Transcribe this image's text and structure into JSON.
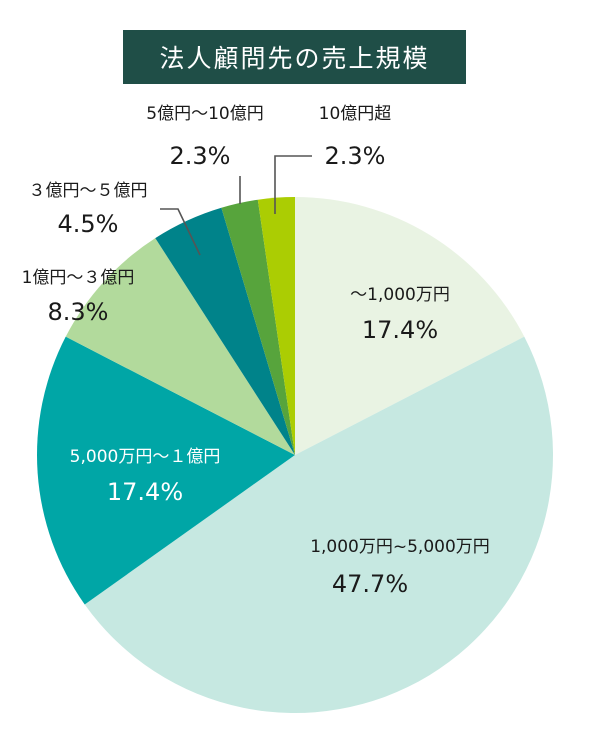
{
  "title": "法人顧問先の売上規模",
  "colors": {
    "title_bg": "#1f4e47",
    "dark_text": "#1a1a1a",
    "light_text": "#ffffff",
    "leader": "#555555"
  },
  "chart_data": {
    "type": "pie",
    "title": "法人顧問先の売上規模",
    "slices": [
      {
        "label": "〜1,000万円",
        "value": 17.4,
        "value_label": "17.4%",
        "color": "#e9f3e3"
      },
      {
        "label": "1,000万円~5,000万円",
        "value": 47.7,
        "value_label": "47.7%",
        "color": "#c6e8e1"
      },
      {
        "label": "5,000万円〜１億円",
        "value": 17.4,
        "value_label": "17.4%",
        "color": "#00a6a6"
      },
      {
        "label": "1億円〜３億円",
        "value": 8.3,
        "value_label": "8.3%",
        "color": "#b2da9c"
      },
      {
        "label": "３億円〜５億円",
        "value": 4.5,
        "value_label": "4.5%",
        "color": "#00838a"
      },
      {
        "label": "5億円〜10億円",
        "value": 2.3,
        "value_label": "2.3%",
        "color": "#57a43c"
      },
      {
        "label": "10億円超",
        "value": 2.3,
        "value_label": "2.3%",
        "color": "#abcd03"
      }
    ],
    "start": "12 o'clock",
    "direction": "clockwise",
    "legend": "none"
  }
}
